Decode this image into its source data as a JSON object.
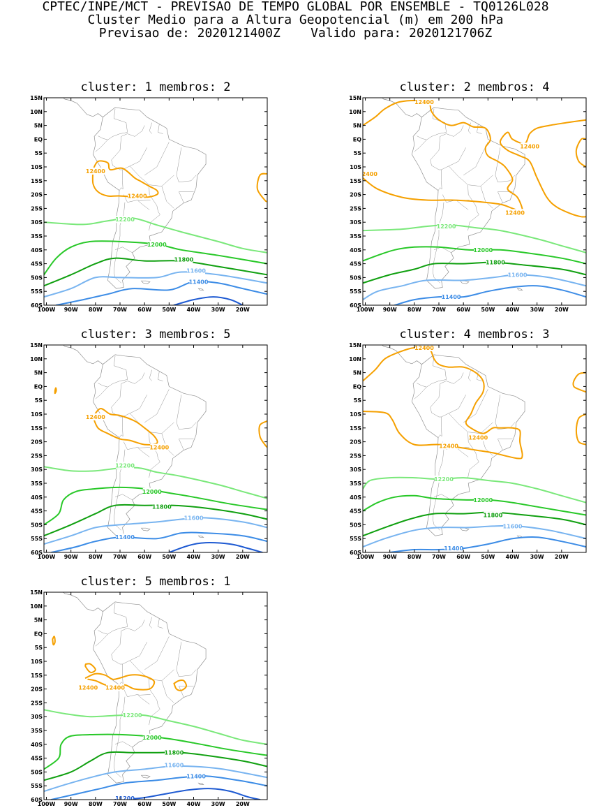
{
  "header": {
    "line1": "CPTEC/INPE/MCT - PREVISAO DE TEMPO GLOBAL POR ENSEMBLE - TQ0126L028",
    "line2": "Cluster Medio para a Altura Geopotencial (m) em 200 hPa",
    "line3": "Previsao de: 2020121400Z    Valido para: 2020121706Z"
  },
  "colors": {
    "c12400": "#f5a000",
    "c12200": "#7ae87a",
    "c12000": "#28c828",
    "c11800": "#10a010",
    "c11600": "#78b4f0",
    "c11400": "#3c8ce6",
    "c11200": "#1e5ad2",
    "coast": "#909090"
  },
  "axes": {
    "lat_labels": [
      "15N",
      "10N",
      "5N",
      "EQ",
      "5S",
      "10S",
      "15S",
      "20S",
      "25S",
      "30S",
      "35S",
      "40S",
      "45S",
      "50S",
      "55S",
      "60S"
    ],
    "lon_labels": [
      "100W",
      "90W",
      "80W",
      "70W",
      "60W",
      "50W",
      "40W",
      "30W",
      "20W"
    ],
    "lat_range": [
      -60,
      15
    ],
    "lon_range": [
      -101,
      -10
    ]
  },
  "panels": [
    {
      "id": 1,
      "title": "cluster: 1   membros: 2",
      "labels": [
        {
          "text": "12400",
          "lon": -80,
          "lat": -11.5,
          "c": "c12400"
        },
        {
          "text": "12400",
          "lon": -63,
          "lat": -20.5,
          "c": "c12400"
        },
        {
          "text": "12200",
          "lon": -68,
          "lat": -29,
          "c": "c12200"
        },
        {
          "text": "12000",
          "lon": -55,
          "lat": -38,
          "c": "c12000"
        },
        {
          "text": "11800",
          "lon": -44,
          "lat": -43.5,
          "c": "c11800"
        },
        {
          "text": "11600",
          "lon": -39,
          "lat": -47.5,
          "c": "c11600"
        },
        {
          "text": "11400",
          "lon": -38,
          "lat": -51.5,
          "c": "c11400"
        }
      ]
    },
    {
      "id": 2,
      "title": "cluster: 2   membros: 4",
      "labels": [
        {
          "text": "12400",
          "lon": -76,
          "lat": 13.5,
          "c": "c12400"
        },
        {
          "text": "12400",
          "lon": -33,
          "lat": -2.5,
          "c": "c12400"
        },
        {
          "text": "12400",
          "lon": -99,
          "lat": -12.5,
          "c": "c12400"
        },
        {
          "text": "12400",
          "lon": -39,
          "lat": -26.5,
          "c": "c12400"
        },
        {
          "text": "12200",
          "lon": -67,
          "lat": -31.5,
          "c": "c12200"
        },
        {
          "text": "12000",
          "lon": -52,
          "lat": -40,
          "c": "c12000"
        },
        {
          "text": "11800",
          "lon": -47,
          "lat": -44.5,
          "c": "c11800"
        },
        {
          "text": "11600",
          "lon": -38,
          "lat": -49,
          "c": "c11600"
        },
        {
          "text": "11400",
          "lon": -65,
          "lat": -57,
          "c": "c11400"
        }
      ]
    },
    {
      "id": 3,
      "title": "cluster: 3   membros: 5",
      "labels": [
        {
          "text": "12400",
          "lon": -80,
          "lat": -11,
          "c": "c12400"
        },
        {
          "text": "12400",
          "lon": -54,
          "lat": -22,
          "c": "c12400"
        },
        {
          "text": "12200",
          "lon": -68,
          "lat": -28.5,
          "c": "c12200"
        },
        {
          "text": "12000",
          "lon": -57,
          "lat": -38,
          "c": "c12000"
        },
        {
          "text": "11800",
          "lon": -53,
          "lat": -43.5,
          "c": "c11800"
        },
        {
          "text": "11600",
          "lon": -40,
          "lat": -47.5,
          "c": "c11600"
        },
        {
          "text": "11400",
          "lon": -68,
          "lat": -54.5,
          "c": "c11400"
        }
      ]
    },
    {
      "id": 4,
      "title": "cluster: 4   membros: 3",
      "labels": [
        {
          "text": "12400",
          "lon": -76,
          "lat": 14,
          "c": "c12400"
        },
        {
          "text": "12400",
          "lon": -54,
          "lat": -18.5,
          "c": "c12400"
        },
        {
          "text": "12400",
          "lon": -66,
          "lat": -21.5,
          "c": "c12400"
        },
        {
          "text": "12200",
          "lon": -68,
          "lat": -33.5,
          "c": "c12200"
        },
        {
          "text": "12000",
          "lon": -52,
          "lat": -41,
          "c": "c12000"
        },
        {
          "text": "11800",
          "lon": -48,
          "lat": -46.5,
          "c": "c11800"
        },
        {
          "text": "11600",
          "lon": -40,
          "lat": -50.5,
          "c": "c11600"
        },
        {
          "text": "11400",
          "lon": -64,
          "lat": -58.5,
          "c": "c11400"
        }
      ]
    },
    {
      "id": 5,
      "title": "cluster: 5   membros: 1",
      "labels": [
        {
          "text": "12400",
          "lon": -83,
          "lat": -19.5,
          "c": "c12400"
        },
        {
          "text": "12400",
          "lon": -72,
          "lat": -19.5,
          "c": "c12400"
        },
        {
          "text": "12200",
          "lon": -65,
          "lat": -29.5,
          "c": "c12200"
        },
        {
          "text": "12000",
          "lon": -57,
          "lat": -37.5,
          "c": "c12000"
        },
        {
          "text": "11800",
          "lon": -48,
          "lat": -43,
          "c": "c11800"
        },
        {
          "text": "11600",
          "lon": -48,
          "lat": -47.5,
          "c": "c11600"
        },
        {
          "text": "11400",
          "lon": -39,
          "lat": -51.5,
          "c": "c11400"
        },
        {
          "text": "11200",
          "lon": -68,
          "lat": -59.5,
          "c": "c11200"
        }
      ]
    }
  ]
}
